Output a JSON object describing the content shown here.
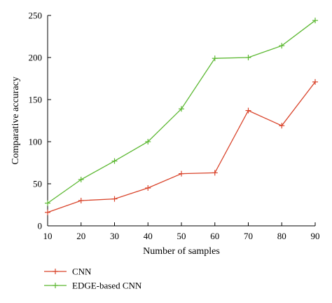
{
  "chart_data": {
    "type": "line",
    "xlabel": "Number of samples",
    "ylabel": "Comparative accuracy",
    "x": [
      10,
      20,
      30,
      40,
      50,
      60,
      70,
      80,
      90
    ],
    "xlim": [
      10,
      90
    ],
    "ylim": [
      0,
      250
    ],
    "xticks": [
      "10",
      "20",
      "30",
      "40",
      "50",
      "60",
      "70",
      "80",
      "90"
    ],
    "yticks": [
      "0",
      "50",
      "100",
      "150",
      "200",
      "250"
    ],
    "grid": false,
    "marker": "plus",
    "legend_placement": "bottom-left",
    "series": [
      {
        "name": "CNN",
        "color": "#d9442b",
        "values": [
          16,
          30,
          32,
          45,
          62,
          63,
          137,
          119,
          171
        ]
      },
      {
        "name": "EDGE-based CNN",
        "color": "#5cb832",
        "values": [
          27,
          55,
          77,
          100,
          139,
          199,
          200,
          214,
          244
        ]
      }
    ]
  }
}
